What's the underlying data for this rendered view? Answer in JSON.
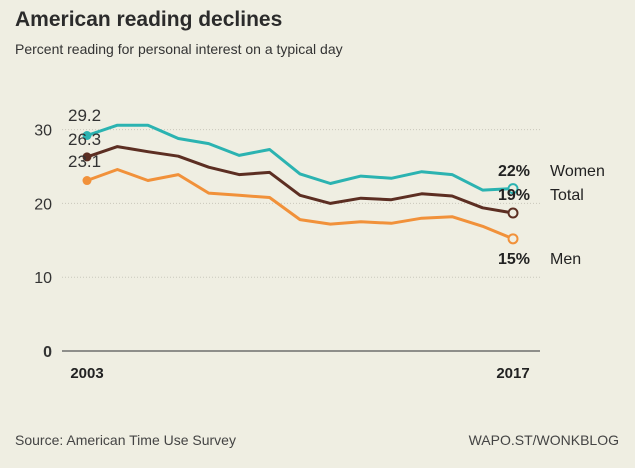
{
  "header": {
    "title": "American reading declines",
    "subtitle": "Percent reading for personal interest on a typical day"
  },
  "footer": {
    "source": "Source: American Time Use Survey",
    "credit": "WAPO.ST/WONKBLOG"
  },
  "chart_data": {
    "type": "line",
    "title": "American reading declines",
    "subtitle": "Percent reading for personal interest on a typical day",
    "x": [
      2003,
      2004,
      2005,
      2006,
      2007,
      2008,
      2009,
      2010,
      2011,
      2012,
      2013,
      2014,
      2015,
      2016,
      2017
    ],
    "x_tick_labels": [
      {
        "x": 2003,
        "label": "2003"
      },
      {
        "x": 2017,
        "label": "2017"
      }
    ],
    "ylim": [
      0,
      35
    ],
    "y_ticks": [
      0,
      10,
      20,
      30
    ],
    "grid": true,
    "series": [
      {
        "name": "Women",
        "color": "#2bb3b1",
        "values": [
          29.2,
          30.6,
          30.6,
          28.8,
          28.1,
          26.5,
          27.3,
          24.0,
          22.7,
          23.7,
          23.4,
          24.3,
          23.9,
          21.8,
          22.0
        ],
        "start_label": "29.2",
        "end_label": "22%"
      },
      {
        "name": "Total",
        "color": "#5c2e22",
        "values": [
          26.3,
          27.7,
          27.0,
          26.4,
          24.9,
          23.9,
          24.2,
          21.1,
          20.0,
          20.7,
          20.5,
          21.3,
          21.0,
          19.4,
          18.7
        ],
        "start_label": "26.3",
        "end_label": "19%"
      },
      {
        "name": "Men",
        "color": "#f1913a",
        "values": [
          23.1,
          24.6,
          23.1,
          23.9,
          21.4,
          21.1,
          20.8,
          17.8,
          17.2,
          17.5,
          17.3,
          18.0,
          18.2,
          16.9,
          15.2
        ],
        "start_label": "23.1",
        "end_label": "15%"
      }
    ]
  }
}
